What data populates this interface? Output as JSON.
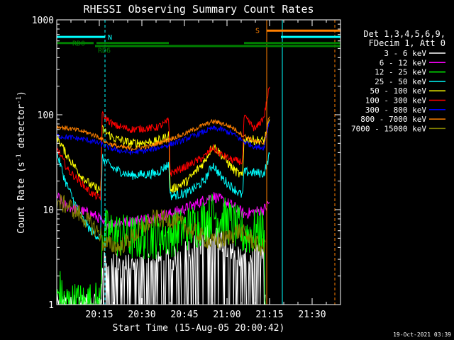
{
  "chart_data": {
    "type": "line",
    "title": "RHESSI Observing Summary Count Rates",
    "xlabel": "Start Time (15-Aug-05 20:00:42)",
    "ylabel_main": "Count Rate (s",
    "ylabel_sup1": "-1",
    "ylabel_mid": " detector",
    "ylabel_sup2": "-1",
    "ylabel_end": ")",
    "x_unit": "minutes after 20:00:42",
    "xlim": [
      0,
      100
    ],
    "ylim": [
      1,
      1000
    ],
    "y_scale": "log",
    "x_ticks": [
      {
        "v": 15,
        "label": "20:15"
      },
      {
        "v": 30,
        "label": "20:30"
      },
      {
        "v": 45,
        "label": "20:45"
      },
      {
        "v": 60,
        "label": "21:00"
      },
      {
        "v": 75,
        "label": "21:15"
      },
      {
        "v": 90,
        "label": "21:30"
      }
    ],
    "y_ticks": [
      {
        "v": 1,
        "label": "1"
      },
      {
        "v": 10,
        "label": "10"
      },
      {
        "v": 100,
        "label": "100"
      },
      {
        "v": 1000,
        "label": "1000"
      }
    ],
    "legend_header": [
      "Det 1,3,4,5,6,9,",
      "FDecim 1, Att 0"
    ],
    "series": [
      {
        "name": "3 - 6 keV",
        "color": "#ffffff",
        "noise": 0.55,
        "points": [
          [
            0,
            1
          ],
          [
            15.5,
            1
          ],
          [
            16,
            2.8
          ],
          [
            26,
            2.6
          ],
          [
            40,
            3
          ],
          [
            50,
            4.5
          ],
          [
            55,
            6
          ],
          [
            60,
            4.5
          ],
          [
            66,
            3
          ],
          [
            73,
            3.5
          ],
          [
            73.5,
            1
          ]
        ]
      },
      {
        "name": "6 - 12 keV",
        "color": "#ff00ff",
        "noise": 0.06,
        "points": [
          [
            0,
            14
          ],
          [
            3,
            11
          ],
          [
            12,
            9
          ],
          [
            15.5,
            8
          ],
          [
            16,
            7
          ],
          [
            26,
            7.5
          ],
          [
            40,
            9
          ],
          [
            48,
            11
          ],
          [
            55,
            14
          ],
          [
            62,
            11
          ],
          [
            66,
            9
          ],
          [
            73,
            10
          ],
          [
            75,
            12
          ]
        ]
      },
      {
        "name": "12 - 25 keV",
        "color": "#00ff00",
        "noise": 0.25,
        "points": [
          [
            0,
            1
          ],
          [
            1,
            1.5
          ],
          [
            2,
            1
          ],
          [
            15.5,
            1
          ],
          [
            16,
            6
          ],
          [
            26,
            5
          ],
          [
            40,
            5.5
          ],
          [
            50,
            7
          ],
          [
            55,
            9
          ],
          [
            62,
            7
          ],
          [
            66,
            5.5
          ],
          [
            73,
            6
          ],
          [
            73.5,
            1
          ]
        ]
      },
      {
        "name": "25 - 50 keV",
        "color": "#00ffff",
        "noise": 0.05,
        "points": [
          [
            0,
            40
          ],
          [
            3,
            20
          ],
          [
            8,
            9
          ],
          [
            12,
            6
          ],
          [
            15.5,
            5
          ],
          [
            16,
            35
          ],
          [
            20,
            27
          ],
          [
            26,
            23
          ],
          [
            35,
            24
          ],
          [
            38,
            28
          ],
          [
            39.5,
            30
          ],
          [
            40,
            14
          ],
          [
            46,
            15
          ],
          [
            52,
            20
          ],
          [
            55,
            30
          ],
          [
            58,
            22
          ],
          [
            62,
            17
          ],
          [
            65.5,
            14
          ],
          [
            66,
            25
          ],
          [
            73,
            24
          ],
          [
            75,
            38
          ]
        ]
      },
      {
        "name": "50 - 100 keV",
        "color": "#ffff00",
        "noise": 0.05,
        "points": [
          [
            0,
            60
          ],
          [
            3,
            40
          ],
          [
            8,
            24
          ],
          [
            12,
            18
          ],
          [
            15.5,
            16
          ],
          [
            16,
            70
          ],
          [
            20,
            57
          ],
          [
            26,
            50
          ],
          [
            35,
            52
          ],
          [
            38,
            57
          ],
          [
            39.5,
            62
          ],
          [
            40,
            16
          ],
          [
            46,
            20
          ],
          [
            52,
            32
          ],
          [
            55,
            48
          ],
          [
            58,
            38
          ],
          [
            62,
            27
          ],
          [
            65.5,
            22
          ],
          [
            66,
            55
          ],
          [
            73,
            53
          ],
          [
            75,
            85
          ]
        ]
      },
      {
        "name": "100 - 300 keV",
        "color": "#ff0000",
        "noise": 0.04,
        "points": [
          [
            0,
            45
          ],
          [
            4,
            26
          ],
          [
            8,
            20
          ],
          [
            12,
            15
          ],
          [
            15.5,
            13
          ],
          [
            16,
            100
          ],
          [
            20,
            78
          ],
          [
            26,
            70
          ],
          [
            35,
            73
          ],
          [
            38,
            80
          ],
          [
            39.5,
            88
          ],
          [
            40,
            24
          ],
          [
            46,
            29
          ],
          [
            52,
            36
          ],
          [
            55,
            45
          ],
          [
            58,
            38
          ],
          [
            62,
            33
          ],
          [
            65.5,
            32
          ],
          [
            66,
            95
          ],
          [
            70,
            70
          ],
          [
            73,
            95
          ],
          [
            75,
            200
          ]
        ]
      },
      {
        "name": "300 - 800 keV",
        "color": "#0000ff",
        "noise": 0.03,
        "points": [
          [
            0,
            60
          ],
          [
            4,
            58
          ],
          [
            10,
            55
          ],
          [
            15,
            50
          ],
          [
            18,
            45
          ],
          [
            22,
            42
          ],
          [
            26,
            40
          ],
          [
            32,
            42
          ],
          [
            38,
            47
          ],
          [
            44,
            53
          ],
          [
            50,
            63
          ],
          [
            55,
            72
          ],
          [
            58,
            70
          ],
          [
            62,
            63
          ],
          [
            66,
            52
          ],
          [
            70,
            46
          ],
          [
            73,
            45
          ],
          [
            75,
            90
          ]
        ]
      },
      {
        "name": "800 - 7000 keV",
        "color": "#ff8000",
        "noise": 0.025,
        "points": [
          [
            0,
            75
          ],
          [
            4,
            72
          ],
          [
            10,
            66
          ],
          [
            15,
            58
          ],
          [
            18,
            50
          ],
          [
            22,
            46
          ],
          [
            26,
            44
          ],
          [
            32,
            46
          ],
          [
            38,
            53
          ],
          [
            44,
            61
          ],
          [
            50,
            74
          ],
          [
            55,
            85
          ],
          [
            58,
            82
          ],
          [
            62,
            73
          ],
          [
            66,
            60
          ],
          [
            70,
            52
          ],
          [
            73,
            50
          ],
          [
            75,
            100
          ]
        ]
      },
      {
        "name": "7000 - 15000 keV",
        "color": "#808000",
        "noise": 0.1,
        "points": [
          [
            0,
            12
          ],
          [
            4,
            11
          ],
          [
            8,
            9
          ],
          [
            12,
            7
          ],
          [
            15.5,
            5.5
          ],
          [
            16,
            4.5
          ],
          [
            22,
            4
          ],
          [
            28,
            5.5
          ],
          [
            34,
            8
          ],
          [
            40,
            8
          ],
          [
            44,
            7
          ],
          [
            48,
            6
          ],
          [
            52,
            5
          ],
          [
            55,
            4.5
          ],
          [
            60,
            5
          ],
          [
            64,
            6
          ],
          [
            68,
            5
          ],
          [
            72,
            4
          ],
          [
            73.5,
            4
          ]
        ]
      }
    ],
    "state_bars": [
      {
        "label": "N",
        "color": "#00ffff",
        "segments": [
          [
            0,
            17
          ]
        ],
        "level": 660
      },
      {
        "label": "RD0",
        "color": "#008000",
        "segments": [
          [
            0,
            13
          ]
        ],
        "level": 570
      },
      {
        "label": "RD6",
        "color": "#008000",
        "segments": [
          [
            13.5,
            39.5
          ],
          [
            39.5,
            66
          ],
          [
            66,
            100
          ]
        ],
        "level": 530,
        "step_up": [
          [
            14,
            39.5,
            570
          ],
          [
            66,
            100,
            570
          ]
        ]
      },
      {
        "label": "S",
        "color": "#ff8000",
        "segments": [
          [
            74,
            100
          ]
        ],
        "level": 770
      },
      {
        "label": "",
        "color": "#00ffff",
        "segments": [
          [
            79,
            100
          ]
        ],
        "level": 660
      }
    ],
    "state_bar_labels": [
      {
        "text": "N",
        "x": 18,
        "level": 660,
        "color": "#00ffff"
      },
      {
        "text": "RD0",
        "x": 5.5,
        "level": 570,
        "color": "#008000"
      },
      {
        "text": "RD6",
        "x": 14.5,
        "level": 480,
        "color": "#008000"
      },
      {
        "text": "S",
        "x": 70,
        "level": 780,
        "color": "#ff8000"
      }
    ],
    "vlines": [
      {
        "x": 17,
        "color": "#00ffff",
        "dash": true
      },
      {
        "x": 74,
        "color": "#ff8000",
        "dash": false
      },
      {
        "x": 79.5,
        "color": "#00ffff",
        "dash": false
      },
      {
        "x": 98,
        "color": "#ff8000",
        "dash": true
      }
    ]
  },
  "timestamp": "19-Oct-2021 03:39"
}
